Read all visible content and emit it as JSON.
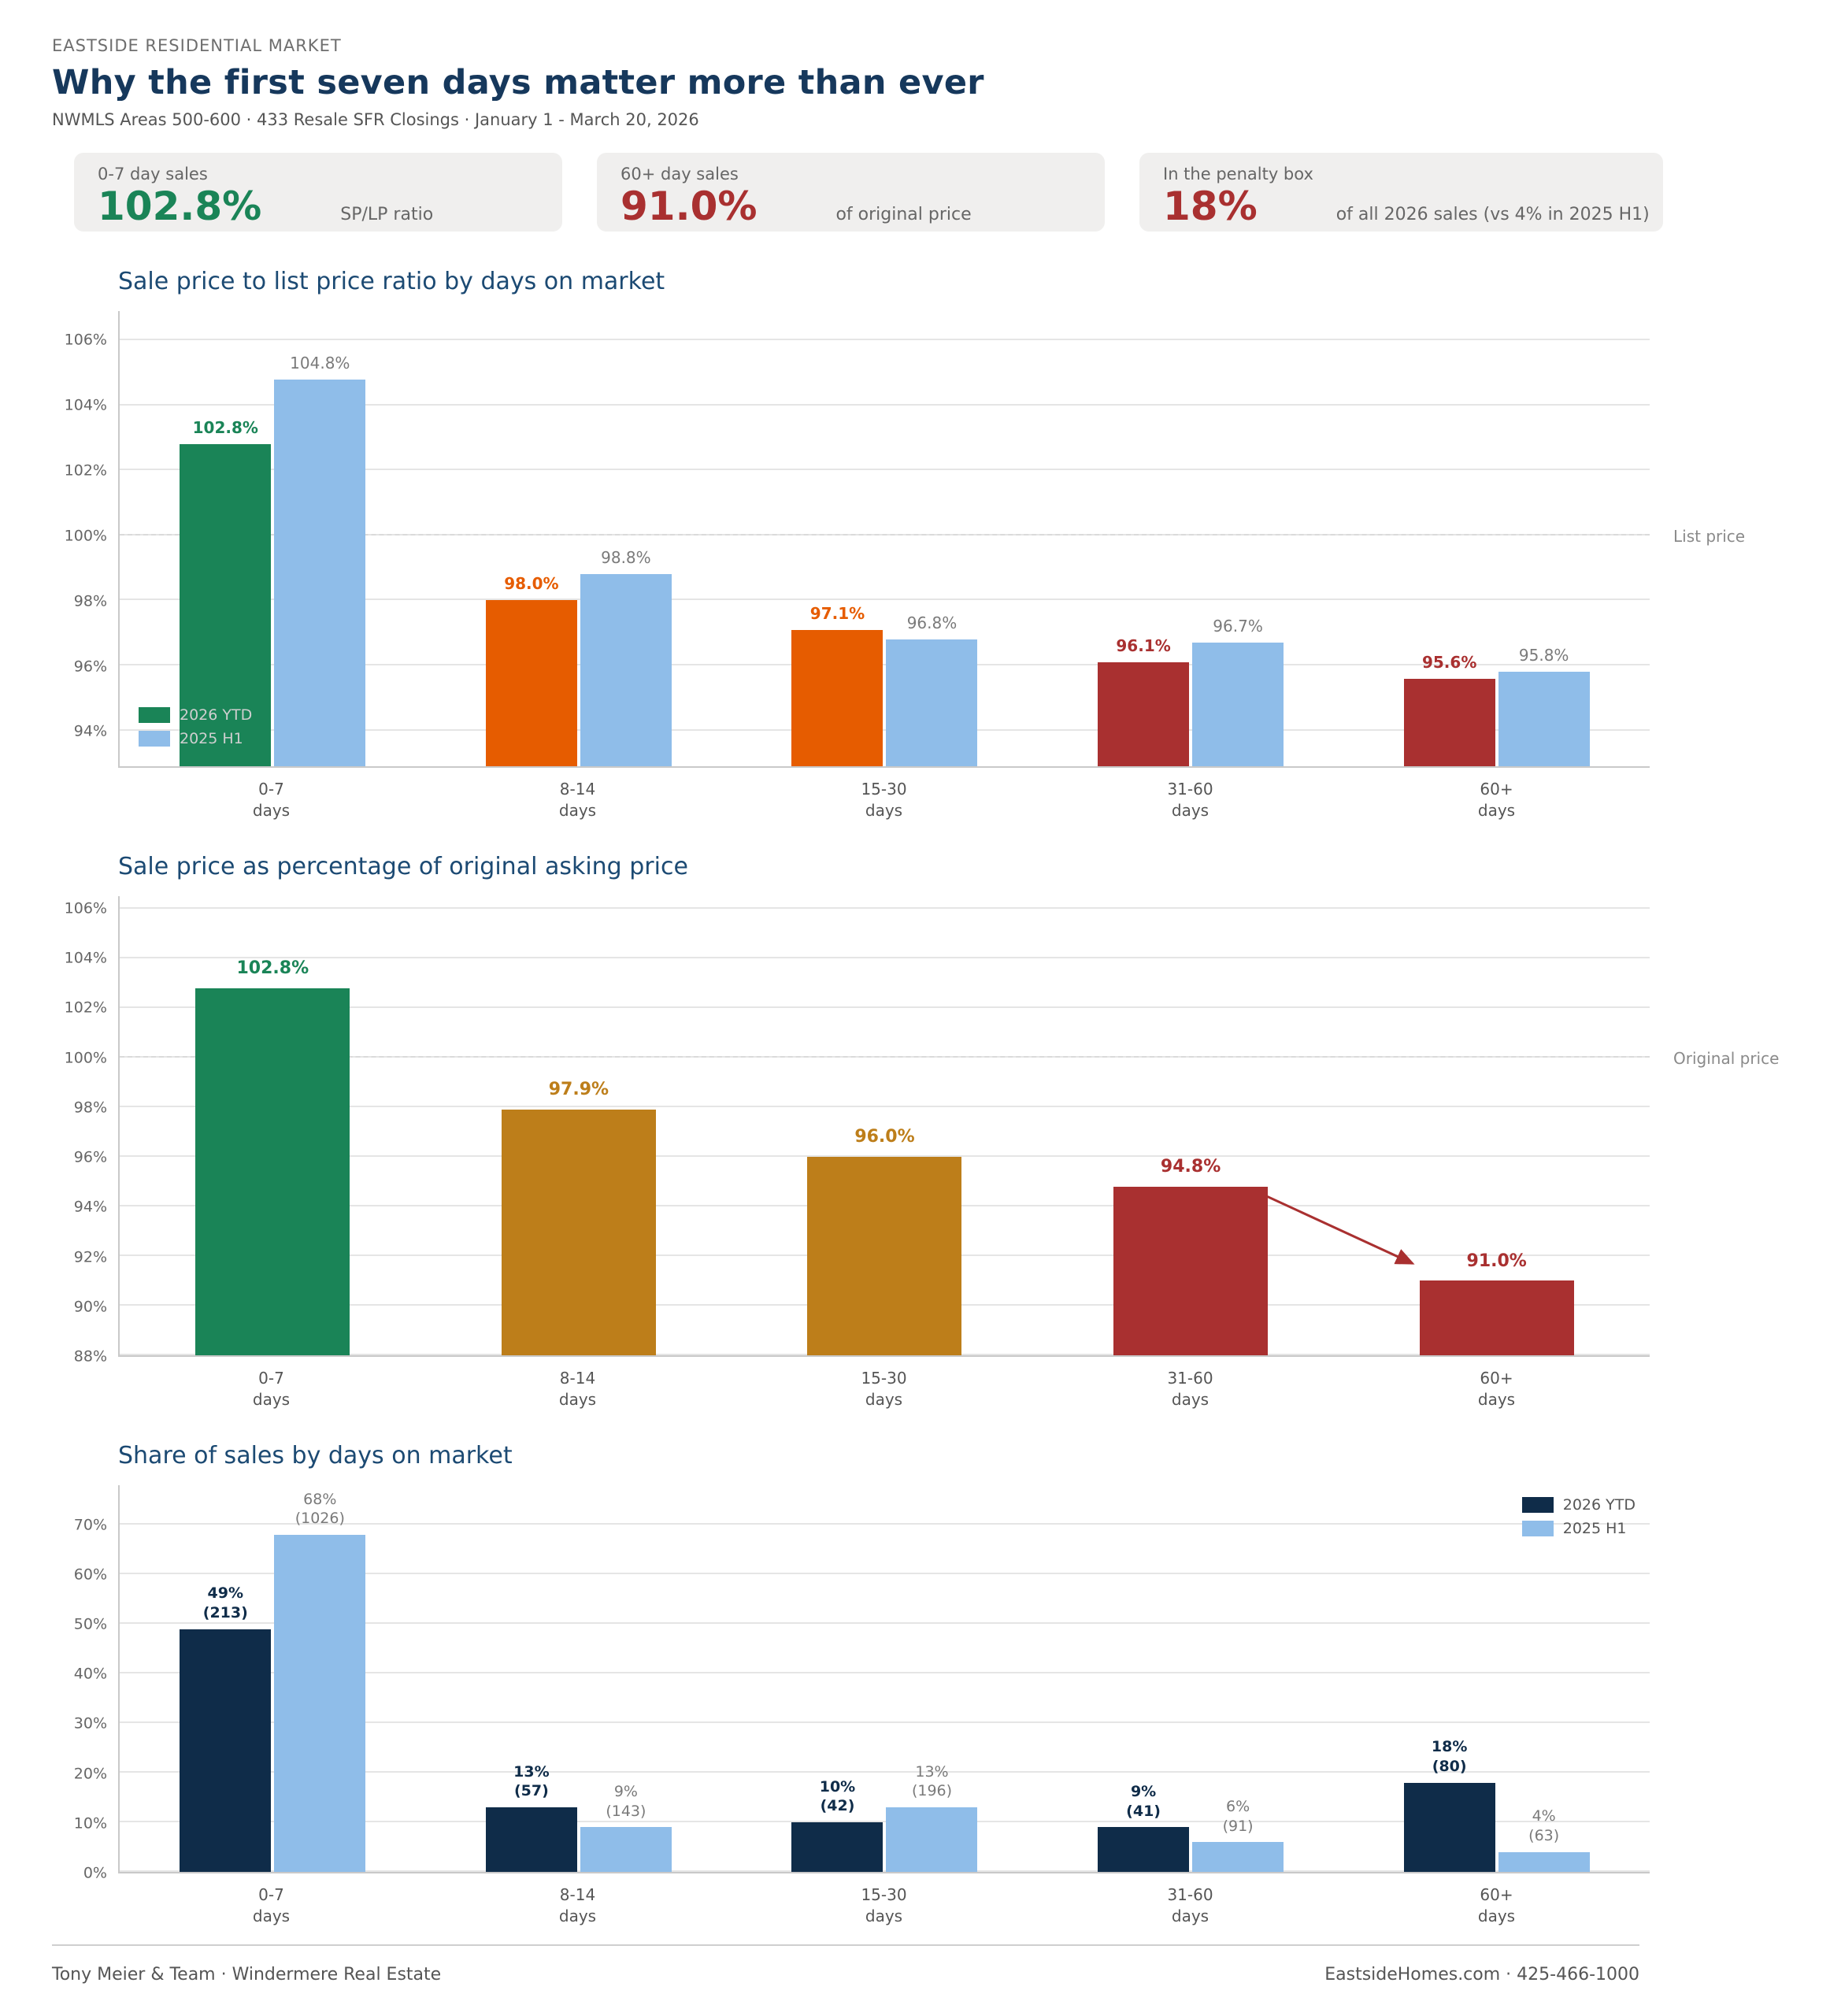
{
  "page": {
    "eyebrow": "EASTSIDE RESIDENTIAL MARKET",
    "title": "Why the first seven days matter more than ever",
    "subtitle": "NWMLS Areas 500-600  ·  433 Resale SFR Closings  ·  January 1 - March 20, 2026"
  },
  "kpis": [
    {
      "label": "0-7 day sales",
      "value": "102.8%",
      "caption": "SP/LP ratio",
      "color": "#1a8457"
    },
    {
      "label": "60+ day sales",
      "value": "91.0%",
      "caption": "of original price",
      "color": "#a93030"
    },
    {
      "label": "In the penalty box",
      "value": "18%",
      "caption": "of all 2026 sales (vs 4% in 2025 H1)",
      "color": "#a93030"
    }
  ],
  "chart_data": [
    {
      "type": "bar",
      "title": "Sale price to list price ratio by days on market",
      "categories": [
        "0-7\ndays",
        "8-14\ndays",
        "15-30\ndays",
        "31-60\ndays",
        "60+\ndays"
      ],
      "series": [
        {
          "name": "2026 YTD",
          "values": [
            102.8,
            98.0,
            97.1,
            96.1,
            95.6
          ],
          "labels": [
            "102.8%",
            "98.0%",
            "97.1%",
            "96.1%",
            "95.6%"
          ],
          "colors": [
            "#1a8457",
            "#e65c00",
            "#e65c00",
            "#a93030",
            "#a93030"
          ],
          "label_color": "match",
          "label_bold": true
        },
        {
          "name": "2025 H1",
          "values": [
            104.8,
            98.8,
            96.8,
            96.7,
            95.8
          ],
          "labels": [
            "104.8%",
            "98.8%",
            "96.8%",
            "96.7%",
            "95.8%"
          ],
          "colors": [
            "#8fbde9",
            "#8fbde9",
            "#8fbde9",
            "#8fbde9",
            "#8fbde9"
          ],
          "label_color": "#7a7a7a",
          "label_bold": false
        }
      ],
      "ylim": [
        92.9,
        106.9
      ],
      "yticks": [
        94,
        96,
        98,
        100,
        102,
        104,
        106
      ],
      "ref_line": {
        "value": 100,
        "label": "List price"
      },
      "legend": {
        "position": "bottom-left",
        "text_color": "#cfcfcf",
        "entries": [
          {
            "label": "2026 YTD",
            "color": "#1a8457"
          },
          {
            "label": "2025 H1",
            "color": "#8fbde9"
          }
        ]
      },
      "grid": true
    },
    {
      "type": "bar",
      "title": "Sale price as percentage of original asking price",
      "categories": [
        "0-7\ndays",
        "8-14\ndays",
        "15-30\ndays",
        "31-60\ndays",
        "60+\ndays"
      ],
      "series": [
        {
          "name": "2026 YTD",
          "values": [
            102.8,
            97.9,
            96.0,
            94.8,
            91.0
          ],
          "labels": [
            "102.8%",
            "97.9%",
            "96.0%",
            "94.8%",
            "91.0%"
          ],
          "colors": [
            "#1a8457",
            "#bd7e1a",
            "#bd7e1a",
            "#a93030",
            "#a93030"
          ],
          "label_color": "match",
          "label_bold": true
        }
      ],
      "ylim": [
        88,
        106.5
      ],
      "yticks": [
        88,
        90,
        92,
        94,
        96,
        98,
        100,
        102,
        104,
        106
      ],
      "ref_line": {
        "value": 100,
        "label": "Original price"
      },
      "annotation_arrow": {
        "from": {
          "x_pct": 75,
          "value": 94.4
        },
        "to": {
          "x_pct": 84.5,
          "value": 91.7
        },
        "color": "#a93030"
      },
      "grid": true
    },
    {
      "type": "bar",
      "title": "Share of sales by days on market",
      "categories": [
        "0-7\ndays",
        "8-14\ndays",
        "15-30\ndays",
        "31-60\ndays",
        "60+\ndays"
      ],
      "series": [
        {
          "name": "2026 YTD",
          "values": [
            49,
            13,
            10,
            9,
            18
          ],
          "labels": [
            "49%\n(213)",
            "13%\n(57)",
            "10%\n(42)",
            "9%\n(41)",
            "18%\n(80)"
          ],
          "colors": [
            "#0f2c49",
            "#0f2c49",
            "#0f2c49",
            "#0f2c49",
            "#0f2c49"
          ],
          "label_color": "match",
          "label_bold": true
        },
        {
          "name": "2025 H1",
          "values": [
            68,
            9,
            13,
            6,
            4
          ],
          "labels": [
            "68%\n(1026)",
            "9%\n(143)",
            "13%\n(196)",
            "6%\n(91)",
            "4%\n(63)"
          ],
          "colors": [
            "#8fbde9",
            "#8fbde9",
            "#8fbde9",
            "#8fbde9",
            "#8fbde9"
          ],
          "label_color": "#7a7a7a",
          "label_bold": false
        }
      ],
      "ylim": [
        0,
        78
      ],
      "yticks": [
        0,
        10,
        20,
        30,
        40,
        50,
        60,
        70
      ],
      "legend": {
        "position": "top-right",
        "text_color": "#555555",
        "entries": [
          {
            "label": "2026 YTD",
            "color": "#0f2c49"
          },
          {
            "label": "2025 H1",
            "color": "#8fbde9"
          }
        ]
      },
      "grid": true
    }
  ],
  "footer": {
    "left": "Tony Meier & Team  ·  Windermere Real Estate",
    "right": "EastsideHomes.com  ·  425-466-1000"
  }
}
